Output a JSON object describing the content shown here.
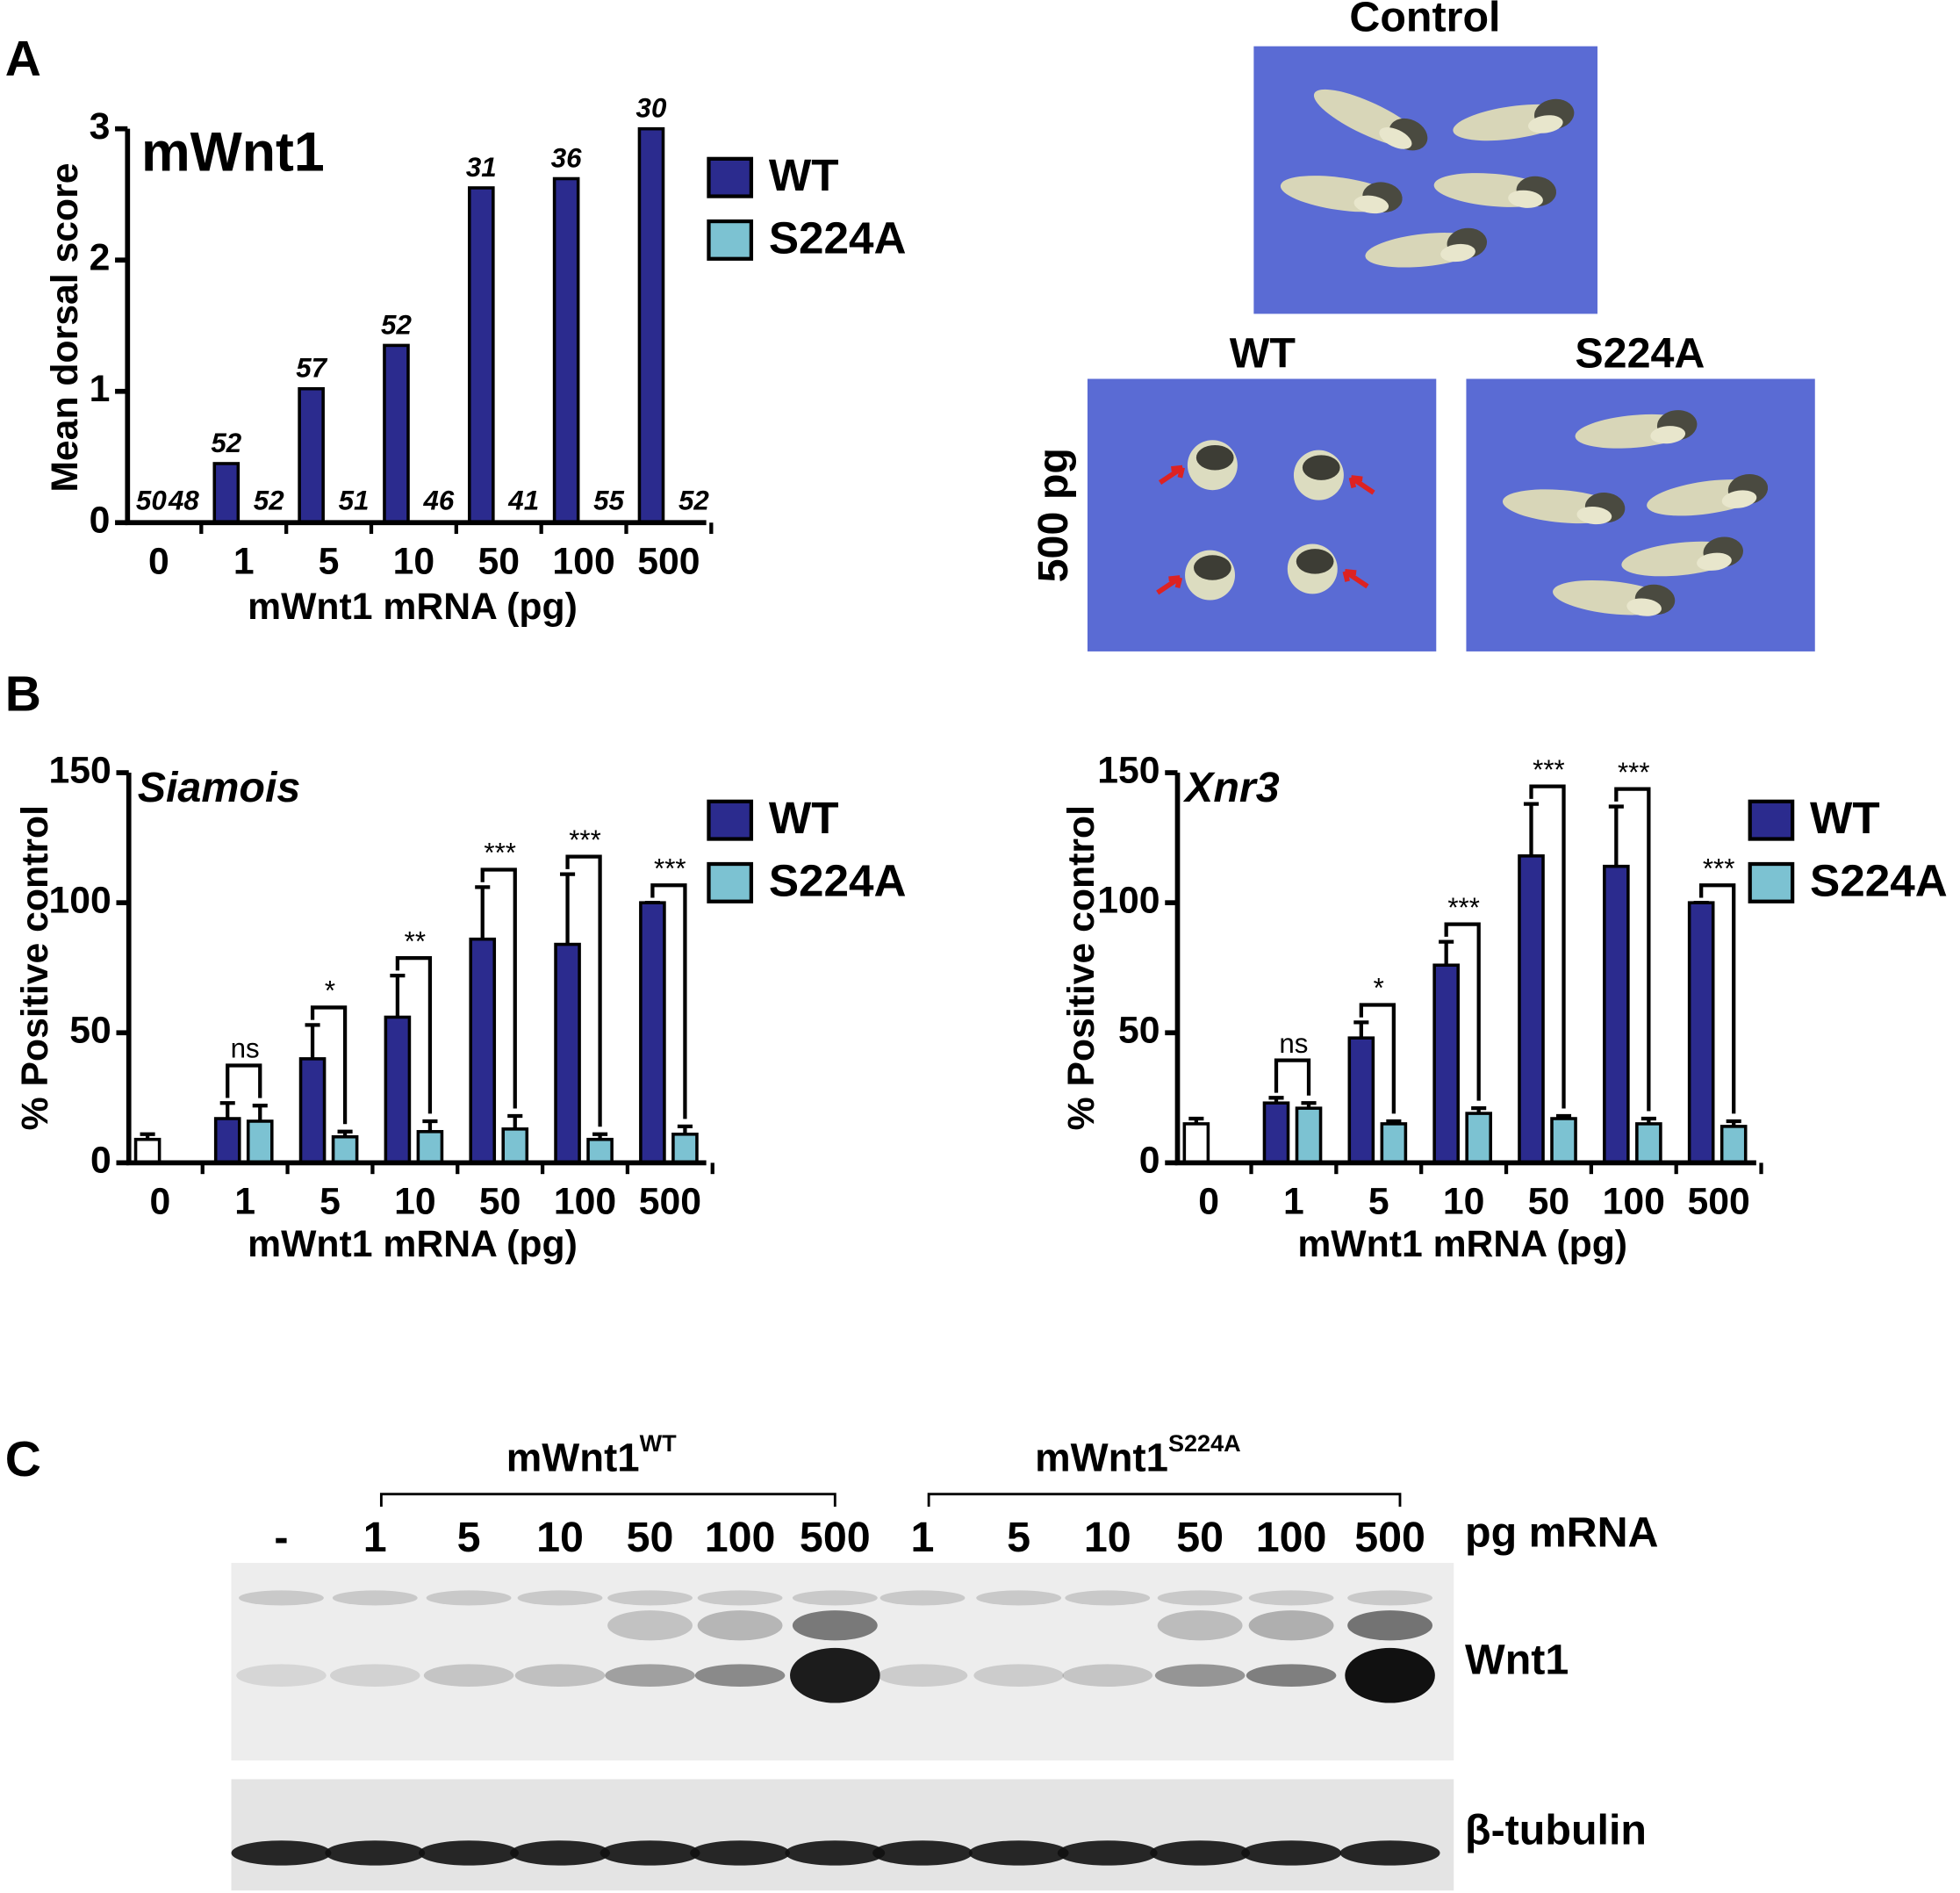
{
  "figure": {
    "panel_labels": [
      "A",
      "B",
      "C"
    ],
    "photos": {
      "control": "Control",
      "wt": "WT",
      "s224a": "S224A",
      "dose": "500 pg"
    },
    "blot": {
      "groups": [
        {
          "name": "mWnt1",
          "superscript": "WT"
        },
        {
          "name": "mWnt1",
          "superscript": "S224A"
        }
      ],
      "lanes": [
        "-",
        "1",
        "5",
        "10",
        "50",
        "100",
        "500",
        "1",
        "5",
        "10",
        "50",
        "100",
        "500"
      ],
      "lane_unit": "pg mRNA",
      "bands": [
        "Wnt1",
        "β-tubulin"
      ]
    }
  },
  "chart_data": [
    {
      "type": "bar",
      "title": "mWnt1",
      "xlabel": "mWnt1 mRNA (pg)",
      "ylabel": "Mean dorsal score",
      "categories": [
        "0",
        "1",
        "5",
        "10",
        "50",
        "100",
        "500"
      ],
      "ylim": [
        0,
        3
      ],
      "yticks": [
        0,
        1,
        2,
        3
      ],
      "series": [
        {
          "name": "WT",
          "color": "#2b2b8e",
          "values": [
            0,
            0.45,
            1.02,
            1.35,
            2.55,
            2.62,
            3.0
          ],
          "n": [
            50,
            52,
            57,
            52,
            31,
            36,
            30
          ]
        },
        {
          "name": "S224A",
          "color": "#7cc2d2",
          "values": [
            0,
            0,
            0,
            0,
            0,
            0,
            0
          ],
          "n": [
            48,
            52,
            51,
            46,
            41,
            55,
            52
          ]
        }
      ]
    },
    {
      "type": "bar",
      "title": "Siamois",
      "xlabel": "mWnt1 mRNA (pg)",
      "ylabel": "% Positive control",
      "categories": [
        "0",
        "1",
        "5",
        "10",
        "50",
        "100",
        "500"
      ],
      "ylim": [
        0,
        150
      ],
      "yticks": [
        0,
        50,
        100,
        150
      ],
      "control": {
        "value": 9,
        "error": 2,
        "color": "#ffffff"
      },
      "series": [
        {
          "name": "WT",
          "color": "#2b2b8e",
          "values": [
            null,
            17,
            40,
            56,
            86,
            84,
            100
          ],
          "errors": [
            null,
            6,
            13,
            16,
            20,
            27,
            0
          ]
        },
        {
          "name": "S224A",
          "color": "#7cc2d2",
          "values": [
            null,
            16,
            10,
            12,
            13,
            9,
            11
          ],
          "errors": [
            null,
            6,
            2,
            4,
            5,
            2,
            3
          ]
        }
      ],
      "significance": [
        null,
        "ns",
        "*",
        "**",
        "***",
        "***",
        "***"
      ]
    },
    {
      "type": "bar",
      "title": "Xnr3",
      "xlabel": "mWnt1 mRNA (pg)",
      "ylabel": "% Positive control",
      "categories": [
        "0",
        "1",
        "5",
        "10",
        "50",
        "100",
        "500"
      ],
      "ylim": [
        0,
        150
      ],
      "yticks": [
        0,
        50,
        100,
        150
      ],
      "control": {
        "value": 15,
        "error": 2,
        "color": "#ffffff"
      },
      "series": [
        {
          "name": "WT",
          "color": "#2b2b8e",
          "values": [
            null,
            23,
            48,
            76,
            118,
            114,
            100
          ],
          "errors": [
            null,
            2,
            6,
            9,
            20,
            23,
            0
          ]
        },
        {
          "name": "S224A",
          "color": "#7cc2d2",
          "values": [
            null,
            21,
            15,
            19,
            17,
            15,
            14
          ],
          "errors": [
            null,
            2,
            1,
            2,
            1,
            2,
            2
          ]
        }
      ],
      "significance": [
        null,
        "ns",
        "*",
        "***",
        "***",
        "***",
        "***"
      ]
    }
  ]
}
